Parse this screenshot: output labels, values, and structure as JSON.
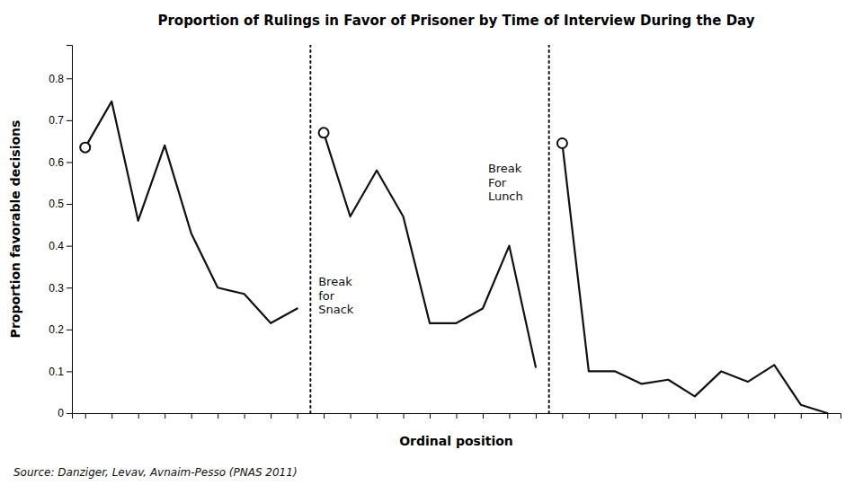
{
  "chart_data": {
    "type": "line",
    "title": "Proportion of Rulings in Favor of Prisoner by Time of Interview During the Day",
    "xlabel": "Ordinal position",
    "ylabel": "Proportion favorable decisions",
    "source": "Source: Danziger, Levav, Avnaim-Pesso (PNAS 2011)",
    "color": "#111111",
    "grid": false,
    "tick_labels": "y",
    "xlim": [
      0.5,
      29.5
    ],
    "xticks": [
      1,
      2,
      3,
      4,
      5,
      6,
      7,
      8,
      9,
      10,
      11,
      12,
      13,
      14,
      15,
      16,
      17,
      18,
      19,
      20,
      21,
      22,
      23,
      24,
      25,
      26,
      27,
      28,
      29
    ],
    "ylim": [
      0,
      0.88
    ],
    "yticks": [
      0,
      0.1,
      0.2,
      0.3,
      0.4,
      0.5,
      0.6,
      0.7,
      0.8
    ],
    "series": [
      {
        "x": [
          1,
          2,
          3,
          4,
          5,
          6,
          7,
          8,
          9
        ],
        "values": [
          0.635,
          0.745,
          0.46,
          0.64,
          0.43,
          0.3,
          0.285,
          0.215,
          0.25
        ]
      },
      {
        "x": [
          10,
          11,
          12,
          13,
          14,
          15,
          16,
          17,
          18
        ],
        "values": [
          0.67,
          0.47,
          0.58,
          0.47,
          0.215,
          0.215,
          0.25,
          0.4,
          0.11
        ]
      },
      {
        "x": [
          19,
          20,
          21,
          22,
          23,
          24,
          25,
          26,
          27,
          28,
          29
        ],
        "values": [
          0.645,
          0.1,
          0.1,
          0.07,
          0.08,
          0.04,
          0.1,
          0.075,
          0.115,
          0.02,
          0.0
        ]
      }
    ],
    "breaks": [
      9.5,
      18.5
    ],
    "annotations": [
      {
        "text": "Break\nfor\nSnack",
        "x": 9.8,
        "y": 0.33
      },
      {
        "text": "Break\nFor\nLunch",
        "x": 16.2,
        "y": 0.6
      }
    ]
  }
}
